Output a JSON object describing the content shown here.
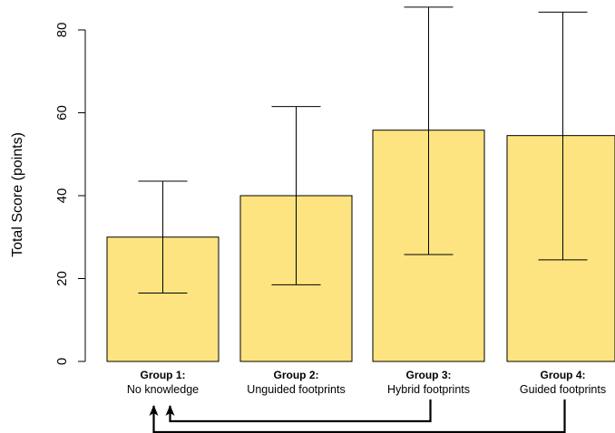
{
  "chart_data": {
    "type": "bar",
    "ylabel": "Total Score (points)",
    "ylim": [
      0,
      80
    ],
    "yticks": [
      0,
      20,
      40,
      60,
      80
    ],
    "grid": false,
    "bar_color": "#fde480",
    "edge_color": "#000000",
    "categories": [
      {
        "title": "Group 1:",
        "subtitle": "No knowledge"
      },
      {
        "title": "Group 2:",
        "subtitle": "Unguided footprints"
      },
      {
        "title": "Group 3:",
        "subtitle": "Hybrid footprints"
      },
      {
        "title": "Group 4:",
        "subtitle": "Guided footprints"
      }
    ],
    "values": [
      30,
      40,
      55.8,
      54.5
    ],
    "error_low": [
      16.5,
      18.5,
      25.8,
      24.5
    ],
    "error_high": [
      43.5,
      61.5,
      85.5,
      84.3
    ],
    "comparisons": [
      {
        "from": "Group 3:",
        "to": "Group 1:"
      },
      {
        "from": "Group 4:",
        "to": "Group 1:"
      }
    ]
  }
}
